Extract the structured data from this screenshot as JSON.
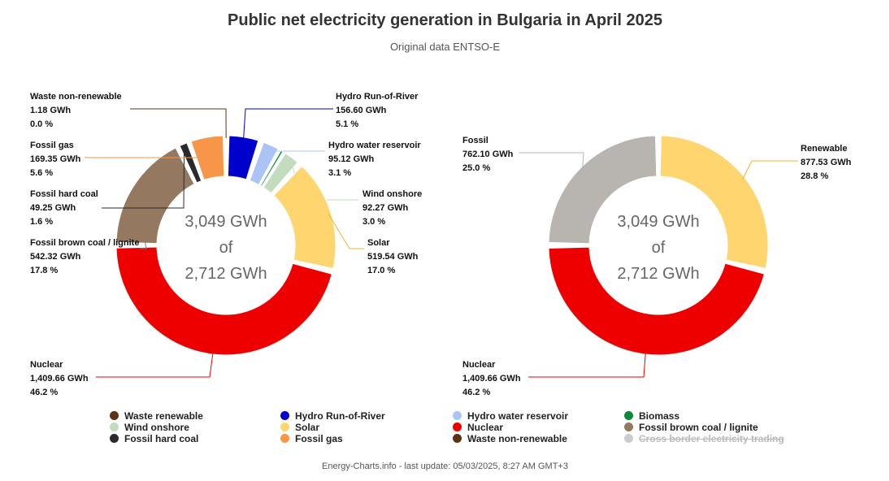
{
  "title": "Public net electricity generation in Bulgaria in April 2025",
  "subtitle": "Original data ENTSO-E",
  "footer": "Energy-Charts.info - last update: 05/03/2025, 8:27 AM GMT+3",
  "chart_data": [
    {
      "type": "pie",
      "subtype": "donut",
      "center_text": [
        "3,049 GWh",
        "of",
        "2,712 GWh"
      ],
      "slices": [
        {
          "name": "Waste non-renewable",
          "value": 1.18,
          "value_label": "1.18 GWh",
          "percent_label": "0.0 %",
          "color": "#5a3312"
        },
        {
          "name": "Hydro Run-of-River",
          "value": 156.6,
          "value_label": "156.60 GWh",
          "percent_label": "5.1 %",
          "color": "#0000cc"
        },
        {
          "name": "Hydro water reservoir",
          "value": 95.12,
          "value_label": "95.12 GWh",
          "percent_label": "3.1 %",
          "color": "#a9c4f5"
        },
        {
          "name": "Biomass",
          "value": 13.0,
          "value_label": "",
          "percent_label": "",
          "color": "#0a8a3a"
        },
        {
          "name": "Wind onshore",
          "value": 92.27,
          "value_label": "92.27 GWh",
          "percent_label": "3.0 %",
          "color": "#c2dcbd"
        },
        {
          "name": "Solar",
          "value": 519.54,
          "value_label": "519.54 GWh",
          "percent_label": "17.0 %",
          "color": "#fed56f"
        },
        {
          "name": "Nuclear",
          "value": 1409.66,
          "value_label": "1,409.66 GWh",
          "percent_label": "46.2 %",
          "color": "#ee0000"
        },
        {
          "name": "Fossil brown coal / lignite",
          "value": 542.32,
          "value_label": "542.32 GWh",
          "percent_label": "17.8 %",
          "color": "#947860"
        },
        {
          "name": "Fossil hard coal",
          "value": 49.25,
          "value_label": "49.25 GWh",
          "percent_label": "1.6 %",
          "color": "#2a2a2a"
        },
        {
          "name": "Fossil gas",
          "value": 169.35,
          "value_label": "169.35 GWh",
          "percent_label": "5.6 %",
          "color": "#f79648"
        }
      ]
    },
    {
      "type": "pie",
      "subtype": "donut",
      "center_text": [
        "3,049 GWh",
        "of",
        "2,712 GWh"
      ],
      "slices": [
        {
          "name": "Renewable",
          "value": 877.53,
          "value_label": "877.53 GWh",
          "percent_label": "28.8 %",
          "color": "#fed56f"
        },
        {
          "name": "Nuclear",
          "value": 1409.66,
          "value_label": "1,409.66 GWh",
          "percent_label": "46.2 %",
          "color": "#ee0000"
        },
        {
          "name": "Fossil",
          "value": 762.1,
          "value_label": "762.10 GWh",
          "percent_label": "25.0 %",
          "color": "#b8b4b0"
        }
      ]
    }
  ],
  "legend": [
    {
      "label": "Waste renewable",
      "color": "#5a3312",
      "hidden": false
    },
    {
      "label": "Hydro Run-of-River",
      "color": "#0000cc",
      "hidden": false
    },
    {
      "label": "Hydro water reservoir",
      "color": "#a9c4f5",
      "hidden": false
    },
    {
      "label": "Biomass",
      "color": "#0a8a3a",
      "hidden": false
    },
    {
      "label": "Wind onshore",
      "color": "#c2dcbd",
      "hidden": false
    },
    {
      "label": "Solar",
      "color": "#fed56f",
      "hidden": false
    },
    {
      "label": "Nuclear",
      "color": "#ee0000",
      "hidden": false
    },
    {
      "label": "Fossil brown coal / lignite",
      "color": "#947860",
      "hidden": false
    },
    {
      "label": "Fossil hard coal",
      "color": "#2a2a2a",
      "hidden": false
    },
    {
      "label": "Fossil gas",
      "color": "#f79648",
      "hidden": false
    },
    {
      "label": "Waste non-renewable",
      "color": "#5a3312",
      "hidden": false
    },
    {
      "label": "Cross border electricity trading",
      "color": "#cccccc",
      "hidden": true
    }
  ]
}
